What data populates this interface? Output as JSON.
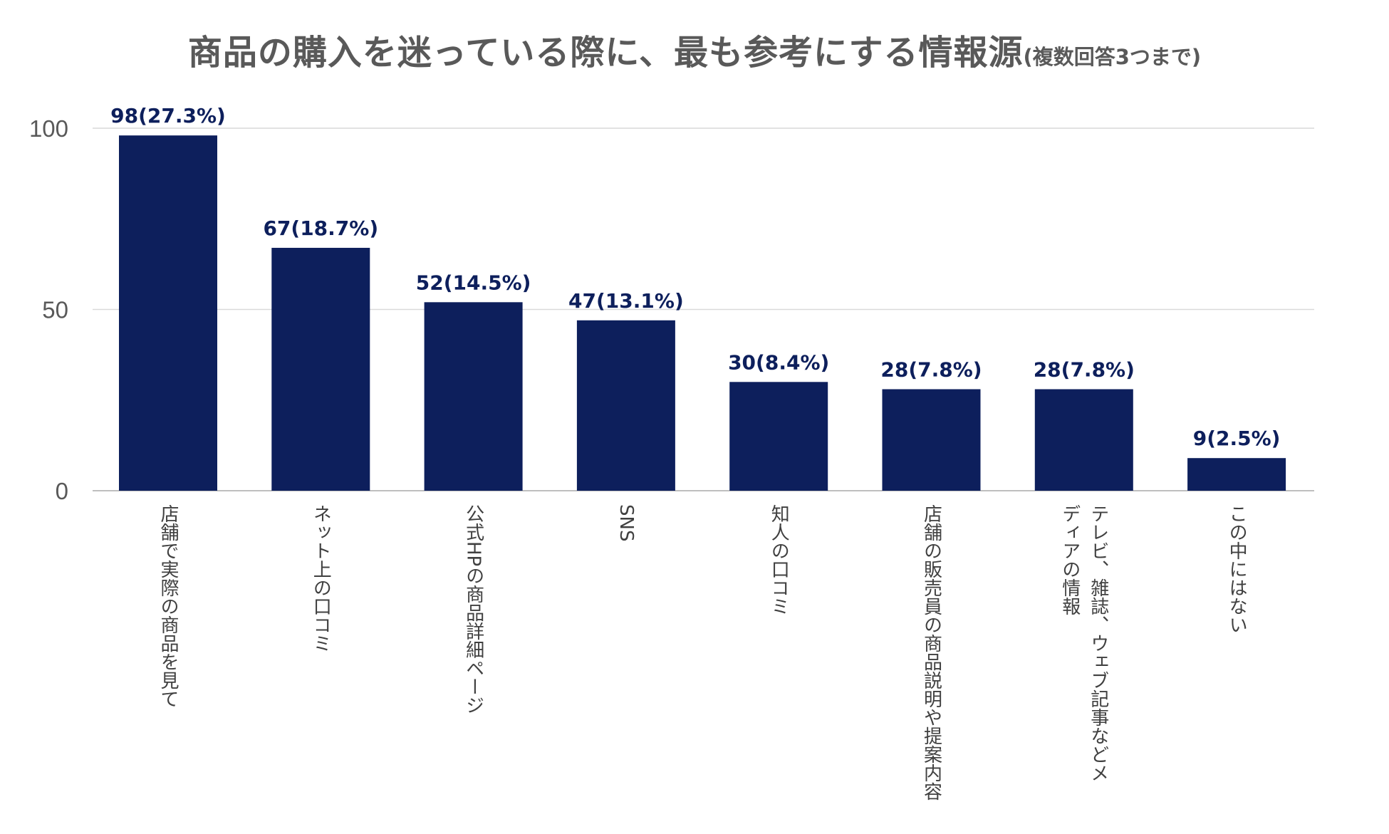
{
  "title": {
    "main": "商品の購入を迷っている際に、最も参考にする情報源",
    "sub": "(複数回答3つまで)"
  },
  "chart_data": {
    "type": "bar",
    "title": "商品の購入を迷っている際に、最も参考にする情報源(複数回答3つまで)",
    "xlabel": "",
    "ylabel": "",
    "ylim": [
      0,
      100
    ],
    "yticks": [
      0,
      50,
      100
    ],
    "grid": true,
    "bar_color": "#0d1f5c",
    "categories": [
      "店舗で実際の商品を見て",
      "ネット上の口コミ",
      "公式HPの商品詳細ページ",
      "SNS",
      "知人の口コミ",
      "店舗の販売員の商品説明や提案内容",
      "テレビ、雑誌、ウェブ記事などメディアの情報",
      "この中にはない"
    ],
    "category_label_lines": [
      [
        "店舗で実際の商品を見て"
      ],
      [
        "ネット上の口コミ"
      ],
      [
        "公式HPの商品詳細ページ"
      ],
      [
        "SNS"
      ],
      [
        "知人の口コミ"
      ],
      [
        "店舗の販売員の商品説明や提案内容"
      ],
      [
        "テレビ、雑誌、ウェブ記事などメ",
        "ディアの情報"
      ],
      [
        "この中にはない"
      ]
    ],
    "values": [
      98,
      67,
      52,
      47,
      30,
      28,
      28,
      9
    ],
    "percentages": [
      27.3,
      18.7,
      14.5,
      13.1,
      8.4,
      7.8,
      7.8,
      2.5
    ],
    "data_labels": [
      "98(27.3%)",
      "67(18.7%)",
      "52(14.5%)",
      "47(13.1%)",
      "30(8.4%)",
      "28(7.8%)",
      "28(7.8%)",
      "9(2.5%)"
    ]
  }
}
